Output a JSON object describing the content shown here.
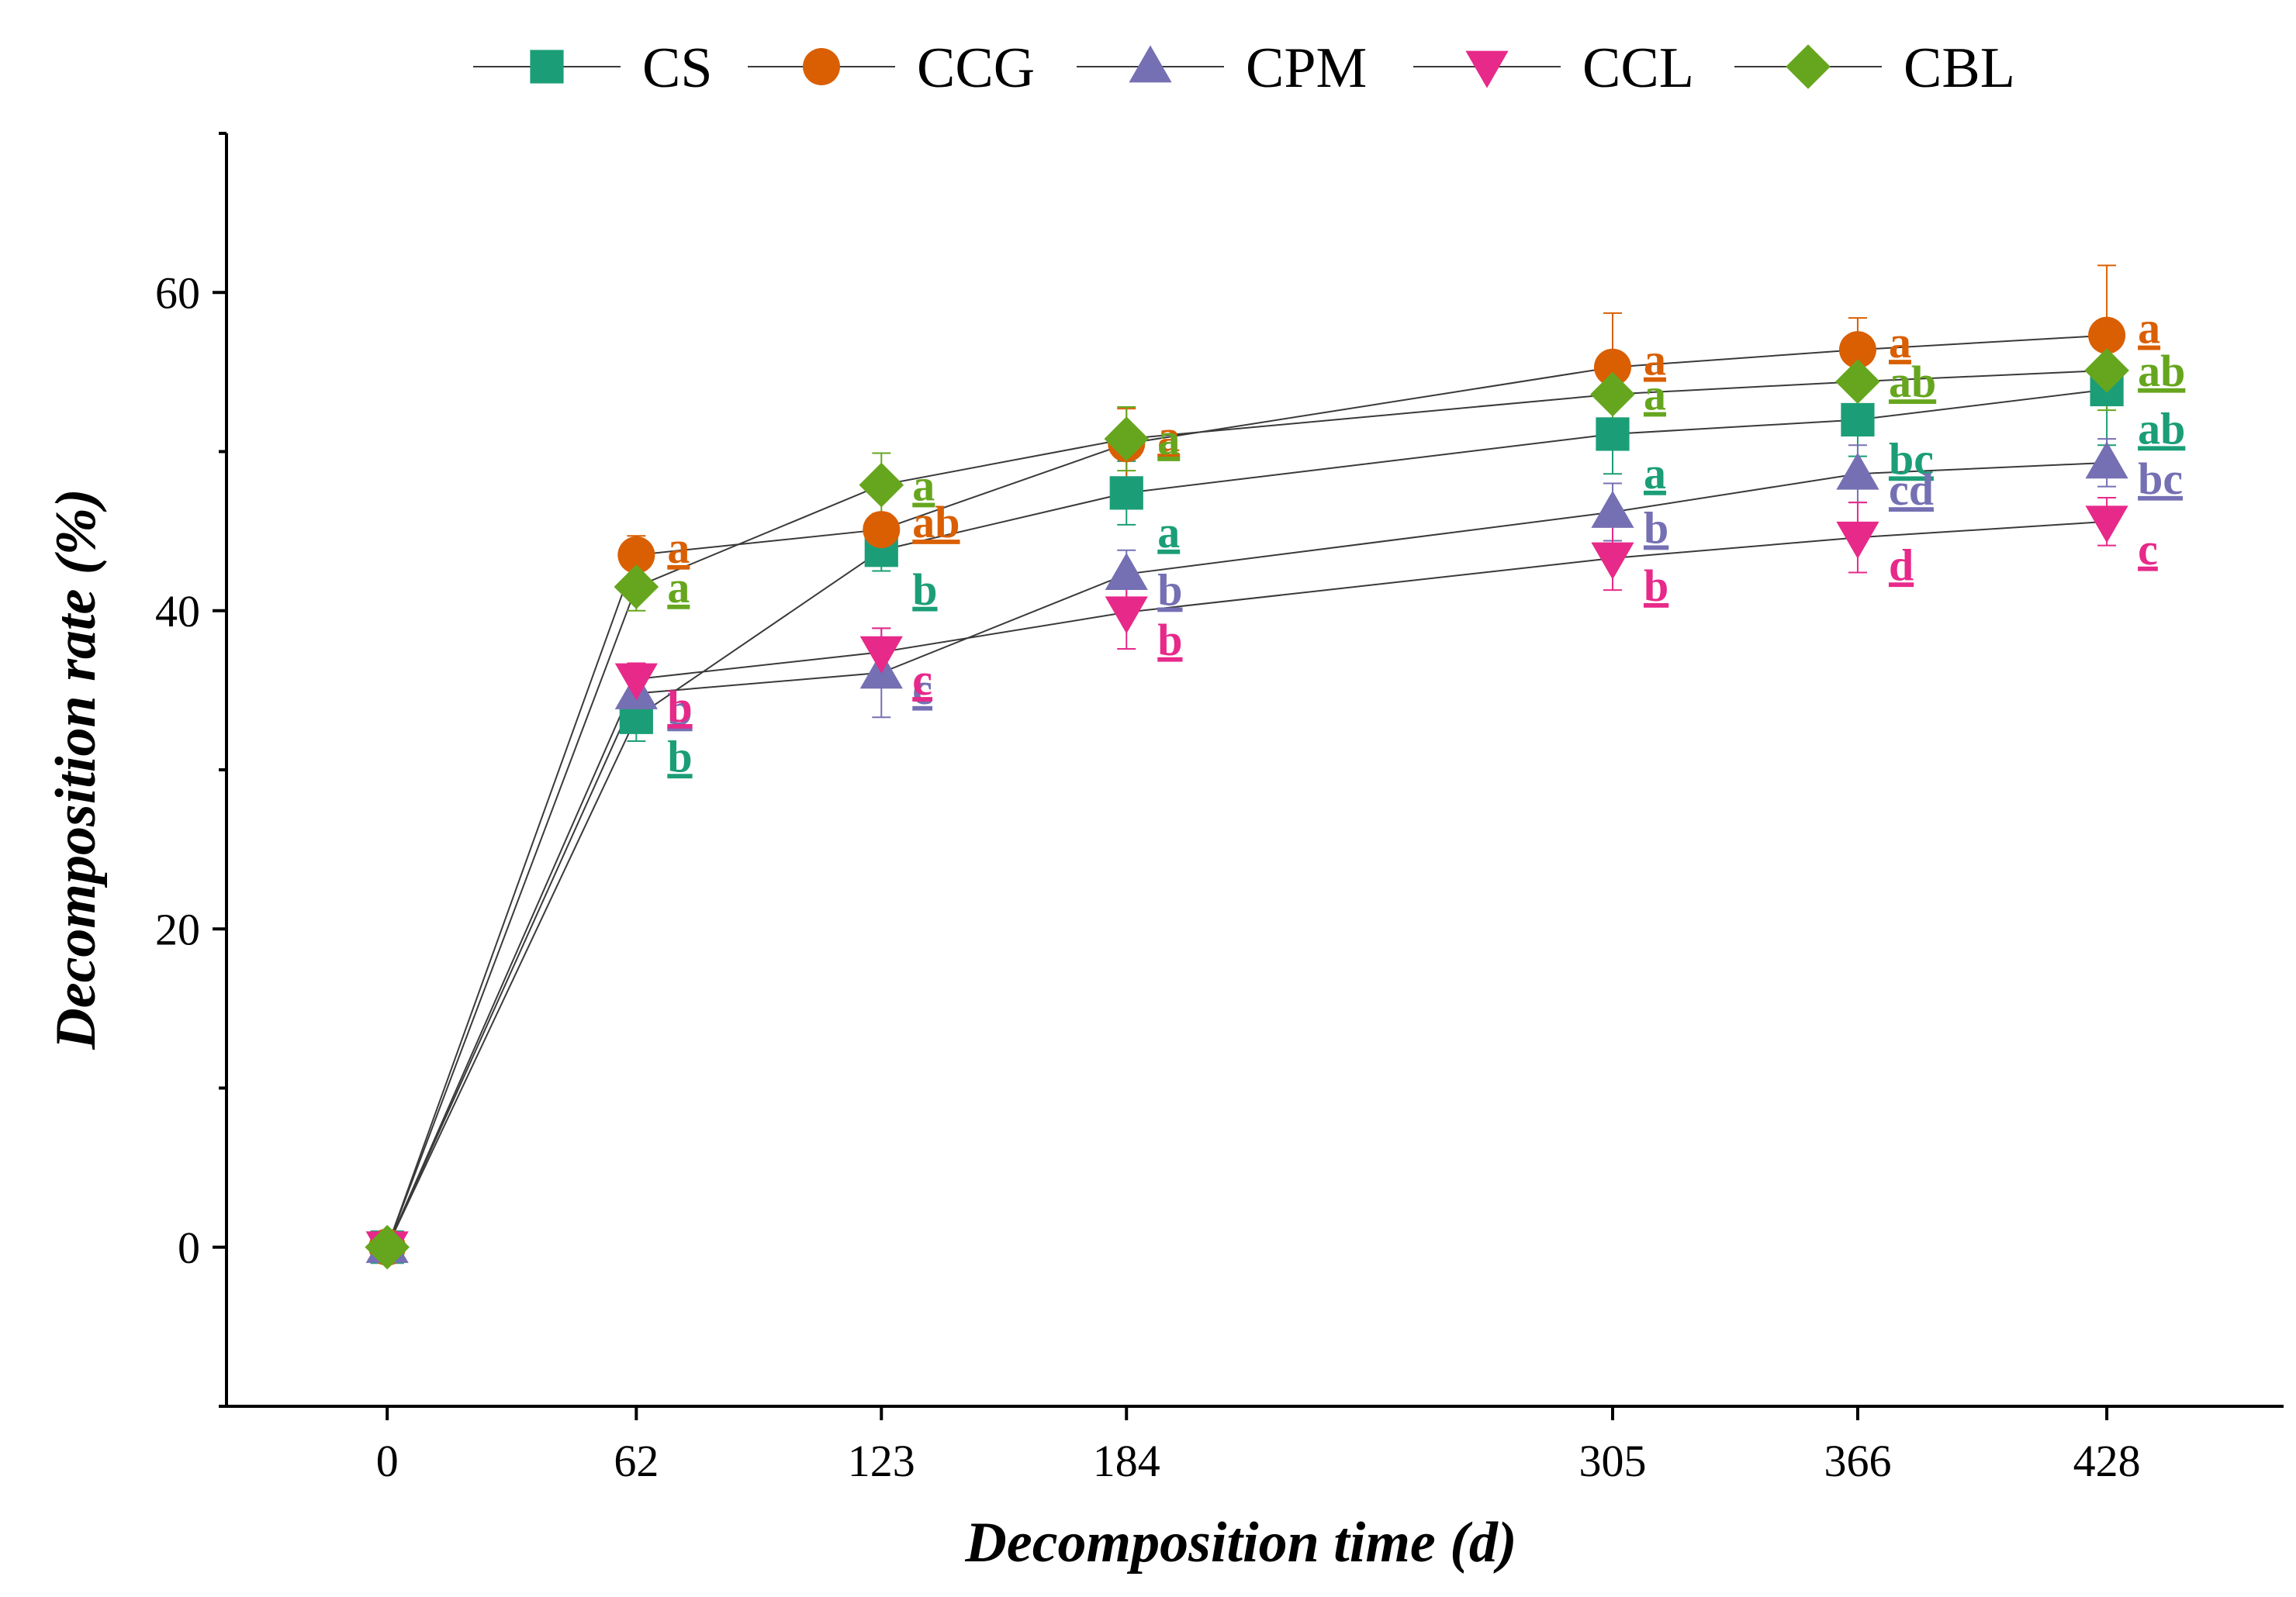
{
  "chart_data": {
    "type": "line",
    "title": "",
    "xlabel": "Decomposition time (d)",
    "ylabel": "Decomposition rate (%)",
    "x": [
      0,
      62,
      123,
      184,
      305,
      366,
      428
    ],
    "x_tick_labels": [
      "0",
      "62",
      "123",
      "184",
      "305",
      "366",
      "428"
    ],
    "y_ticks": [
      0,
      20,
      40,
      60
    ],
    "y_tick_labels": [
      "0",
      "20",
      "40",
      "60"
    ],
    "xlim": [
      -40,
      472
    ],
    "ylim": [
      -10,
      70
    ],
    "grid": false,
    "legend_position": "top",
    "series": [
      {
        "name": "CS",
        "color": "#1b9e77",
        "marker": "square",
        "values": [
          0,
          33.3,
          43.8,
          47.4,
          51.1,
          52.0,
          53.9
        ],
        "errors": [
          0,
          1.5,
          1.3,
          2.0,
          2.5,
          2.3,
          3.5
        ],
        "letters": [
          "",
          "b",
          "b",
          "a",
          "a",
          "bc",
          "ab"
        ]
      },
      {
        "name": "CCG",
        "color": "#d95f02",
        "marker": "circle",
        "values": [
          0,
          43.5,
          45.1,
          50.5,
          55.3,
          56.4,
          57.3
        ],
        "errors": [
          0,
          1.2,
          1.0,
          2.2,
          3.4,
          2.0,
          4.4
        ],
        "letters": [
          "",
          "a",
          "ab",
          "a",
          "a",
          "a",
          "a"
        ]
      },
      {
        "name": "CPM",
        "color": "#7570b3",
        "marker": "triangle-up",
        "values": [
          0,
          34.8,
          36.1,
          42.3,
          46.2,
          48.6,
          49.3
        ],
        "errors": [
          0,
          1.0,
          2.8,
          1.5,
          1.8,
          1.8,
          1.5
        ],
        "letters": [
          "",
          "b",
          "c",
          "b",
          "b",
          "cd",
          "bc"
        ]
      },
      {
        "name": "CCL",
        "color": "#e7298a",
        "marker": "triangle-down",
        "values": [
          0,
          35.7,
          37.4,
          39.9,
          43.3,
          44.6,
          45.6
        ],
        "errors": [
          0,
          1.0,
          1.5,
          2.3,
          2.0,
          2.2,
          1.5
        ],
        "letters": [
          "",
          "b",
          "c",
          "b",
          "b",
          "d",
          "c"
        ]
      },
      {
        "name": "CBL",
        "color": "#66a61e",
        "marker": "diamond",
        "values": [
          0,
          41.5,
          47.9,
          50.8,
          53.6,
          54.4,
          55.1
        ],
        "errors": [
          0,
          1.5,
          2.0,
          2.0,
          2.5,
          2.0,
          2.5
        ],
        "letters": [
          "",
          "a",
          "a",
          "a",
          "a",
          "ab",
          "ab"
        ]
      }
    ]
  }
}
